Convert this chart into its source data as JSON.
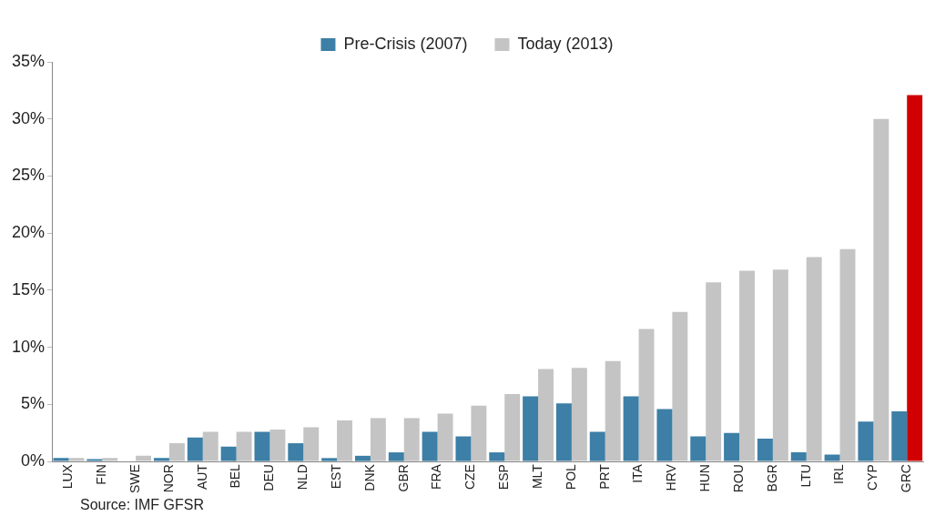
{
  "chart_data": {
    "type": "bar",
    "categories": [
      "LUX",
      "FIN",
      "SWE",
      "NOR",
      "AUT",
      "BEL",
      "DEU",
      "NLD",
      "EST",
      "DNK",
      "GBR",
      "FRA",
      "CZE",
      "ESP",
      "MLT",
      "POL",
      "PRT",
      "ITA",
      "HRV",
      "HUN",
      "ROU",
      "BGR",
      "LTU",
      "IRL",
      "CYP",
      "GRC"
    ],
    "series": [
      {
        "name": "Pre-Crisis (2007)",
        "color": "#3d7fa6",
        "values": [
          0.3,
          0.2,
          0.0,
          0.3,
          2.1,
          1.3,
          2.6,
          1.6,
          0.3,
          0.5,
          0.8,
          2.6,
          2.2,
          0.8,
          5.7,
          5.1,
          2.6,
          5.7,
          4.6,
          2.2,
          2.5,
          2.0,
          0.8,
          0.6,
          3.5,
          4.4
        ]
      },
      {
        "name": "Today (2013)",
        "color": "#c4c4c4",
        "colors": [
          "#c4c4c4",
          "#c4c4c4",
          "#c4c4c4",
          "#c4c4c4",
          "#c4c4c4",
          "#c4c4c4",
          "#c4c4c4",
          "#c4c4c4",
          "#c4c4c4",
          "#c4c4c4",
          "#c4c4c4",
          "#c4c4c4",
          "#c4c4c4",
          "#c4c4c4",
          "#c4c4c4",
          "#c4c4c4",
          "#c4c4c4",
          "#c4c4c4",
          "#c4c4c4",
          "#c4c4c4",
          "#c4c4c4",
          "#c4c4c4",
          "#c4c4c4",
          "#c4c4c4",
          "#c4c4c4",
          "#d00000"
        ],
        "values": [
          0.3,
          0.3,
          0.5,
          1.6,
          2.6,
          2.6,
          2.8,
          3.0,
          3.6,
          3.8,
          3.8,
          4.2,
          4.9,
          5.9,
          8.1,
          8.2,
          8.8,
          11.6,
          13.1,
          15.7,
          16.7,
          16.8,
          17.9,
          18.6,
          30.0,
          32.1
        ]
      }
    ],
    "ylim": [
      0,
      35
    ],
    "yticks": [
      {
        "value": 0,
        "label": "0%"
      },
      {
        "value": 5,
        "label": "5%"
      },
      {
        "value": 10,
        "label": "10%"
      },
      {
        "value": 15,
        "label": "15%"
      },
      {
        "value": 20,
        "label": "20%"
      },
      {
        "value": 25,
        "label": "25%"
      },
      {
        "value": 30,
        "label": "30%"
      },
      {
        "value": 35,
        "label": "35%"
      }
    ],
    "grid": false,
    "legend": "top",
    "annotations": [
      "Source: IMF GFSR"
    ]
  }
}
